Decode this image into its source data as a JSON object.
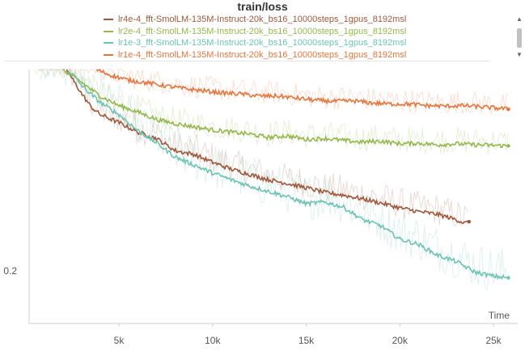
{
  "chart_data": {
    "type": "line",
    "title": "train/loss",
    "xlabel": "Time",
    "ylabel": "",
    "x_ticks": [
      5000,
      10000,
      15000,
      20000,
      25000
    ],
    "x_tick_labels": [
      "5k",
      "10k",
      "15k",
      "20k",
      "25k"
    ],
    "y_ticks": [
      0.2
    ],
    "y_tick_labels": [
      "0.2"
    ],
    "xlim": [
      0,
      26100
    ],
    "ylim": [
      0.155,
      0.58
    ],
    "grid": false,
    "legend_position": "top",
    "series": [
      {
        "name": "lr4e-4_fft-SmolLM-135M-Instruct-20k_bs16_10000steps_1gpus_8192msl",
        "color": "#a0573a",
        "x": [
          2200,
          3000,
          3500,
          4000,
          5000,
          6000,
          7000,
          8000,
          9000,
          10000,
          11000,
          12000,
          13000,
          14000,
          15000,
          16000,
          17000,
          18000,
          19000,
          20000,
          21000,
          22000,
          23000,
          23500,
          23700
        ],
        "y": [
          0.58,
          0.535,
          0.51,
          0.495,
          0.48,
          0.462,
          0.45,
          0.427,
          0.42,
          0.405,
          0.392,
          0.382,
          0.372,
          0.365,
          0.357,
          0.348,
          0.343,
          0.336,
          0.328,
          0.319,
          0.312,
          0.307,
          0.297,
          0.29,
          0.293
        ]
      },
      {
        "name": "lr2e-4_fft-SmolLM-135M-Instruct-20k_bs16_10000steps_1gpus_8192msl",
        "color": "#93b84b",
        "x": [
          2000,
          3000,
          4000,
          5000,
          6000,
          7000,
          8000,
          9000,
          10000,
          11000,
          12000,
          13000,
          14000,
          15000,
          16000,
          17000,
          18000,
          19000,
          20000,
          21000,
          22000,
          23000,
          24000,
          25000,
          25800
        ],
        "y": [
          0.58,
          0.556,
          0.53,
          0.512,
          0.5,
          0.486,
          0.478,
          0.472,
          0.466,
          0.462,
          0.458,
          0.452,
          0.455,
          0.448,
          0.45,
          0.446,
          0.443,
          0.445,
          0.44,
          0.441,
          0.438,
          0.44,
          0.438,
          0.437,
          0.436
        ]
      },
      {
        "name": "lr1e-3_fft-SmolLM-135M-Instruct-20k_bs16_10000steps_1gpus_8192msl",
        "color": "#6cc4b4",
        "x": [
          2300,
          3000,
          4000,
          5000,
          6000,
          7000,
          8000,
          9000,
          10000,
          11000,
          12000,
          13000,
          14000,
          15000,
          16000,
          17000,
          18000,
          19000,
          20000,
          21000,
          22000,
          23000,
          24000,
          25000,
          25800
        ],
        "y": [
          0.58,
          0.55,
          0.518,
          0.495,
          0.465,
          0.442,
          0.415,
          0.4,
          0.385,
          0.372,
          0.36,
          0.35,
          0.34,
          0.327,
          0.33,
          0.32,
          0.297,
          0.285,
          0.26,
          0.25,
          0.23,
          0.218,
          0.198,
          0.19,
          0.187
        ]
      },
      {
        "name": "lr1e-4_fft-SmolLM-135M-Instruct-20k_bs16_10000steps_1gpus_8192msl",
        "color": "#e8743b",
        "x": [
          3800,
          4500,
          5500,
          6500,
          7500,
          8500,
          9500,
          10500,
          11500,
          12500,
          13500,
          14500,
          15500,
          16500,
          17500,
          18500,
          19500,
          20500,
          21500,
          22500,
          23500,
          24500,
          25400,
          25800
        ],
        "y": [
          0.58,
          0.57,
          0.56,
          0.555,
          0.549,
          0.544,
          0.54,
          0.536,
          0.534,
          0.53,
          0.53,
          0.526,
          0.522,
          0.52,
          0.521,
          0.517,
          0.515,
          0.515,
          0.512,
          0.511,
          0.512,
          0.509,
          0.507,
          0.505
        ]
      }
    ]
  },
  "ui": {
    "scroll_up": "▲",
    "scroll_down": "▼"
  }
}
